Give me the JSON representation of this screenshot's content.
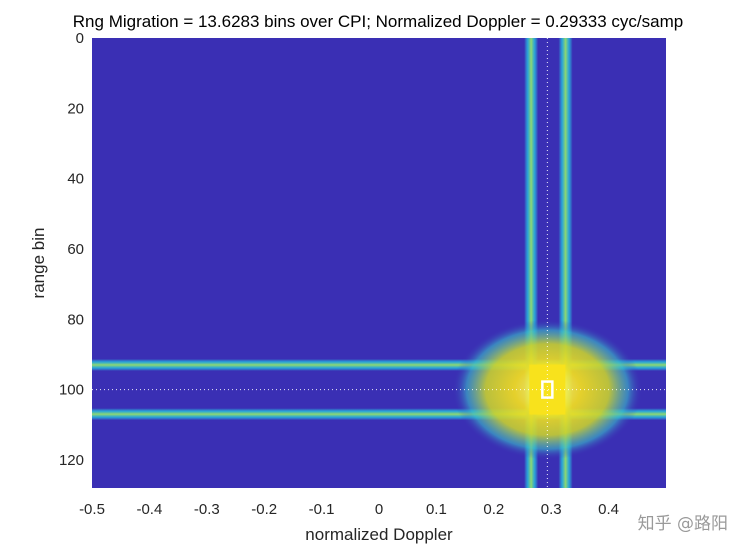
{
  "chart_data": {
    "type": "heatmap",
    "title": "Rng Migration = 13.6283 bins over CPI; Normalized Doppler = 0.29333 cyc/samp",
    "xlabel": "normalized Doppler",
    "ylabel": "range bin",
    "xlim": [
      -0.5,
      0.5
    ],
    "ylim": [
      128,
      0
    ],
    "x_ticks": [
      "-0.5",
      "-0.4",
      "-0.3",
      "-0.2",
      "-0.1",
      "0",
      "0.1",
      "0.2",
      "0.3",
      "0.4"
    ],
    "y_ticks": [
      "0",
      "20",
      "40",
      "60",
      "80",
      "100",
      "120"
    ],
    "target": {
      "doppler": 0.2933,
      "range_bin": 100
    },
    "range_sidelobe_rows": [
      93,
      107
    ],
    "doppler_sidelobe_cols": [
      0.265,
      0.325
    ],
    "colormap": "parula",
    "colors": {
      "background": "#3a2fb4",
      "low": "#3b3ab8",
      "mid": "#2ab0e0",
      "high": "#f8e21c",
      "peak": "#fffe8c"
    }
  },
  "watermark": "知乎 @路阳"
}
